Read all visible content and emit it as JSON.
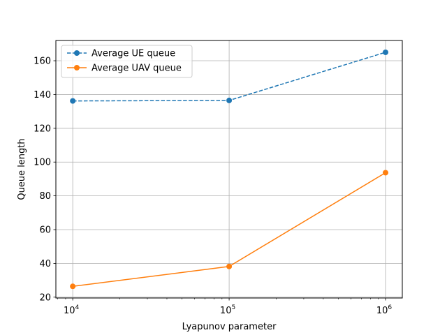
{
  "chart_data": {
    "type": "line",
    "xlabel": "Lyapunov parameter",
    "ylabel": "Queue length",
    "x_scale": "log",
    "xlim": [
      7800,
      1280000
    ],
    "ylim": [
      19.5,
      172
    ],
    "grid": true,
    "legend_position": "upper-left",
    "x": [
      10000,
      100000,
      1000000
    ],
    "x_tick_labels": [
      {
        "base": "10",
        "exp": "4"
      },
      {
        "base": "10",
        "exp": "5"
      },
      {
        "base": "10",
        "exp": "6"
      }
    ],
    "y_ticks": [
      20,
      40,
      60,
      80,
      100,
      120,
      140,
      160
    ],
    "y_tick_labels": [
      "20",
      "40",
      "60",
      "80",
      "100",
      "120",
      "140",
      "160"
    ],
    "series": [
      {
        "name": "Average UE queue",
        "values": [
          136.2,
          136.5,
          165.0
        ],
        "color": "#1f77b4",
        "dashed": true
      },
      {
        "name": "Average UAV queue",
        "values": [
          26.4,
          38.2,
          93.7
        ],
        "color": "#ff7f0e",
        "dashed": false
      }
    ]
  }
}
